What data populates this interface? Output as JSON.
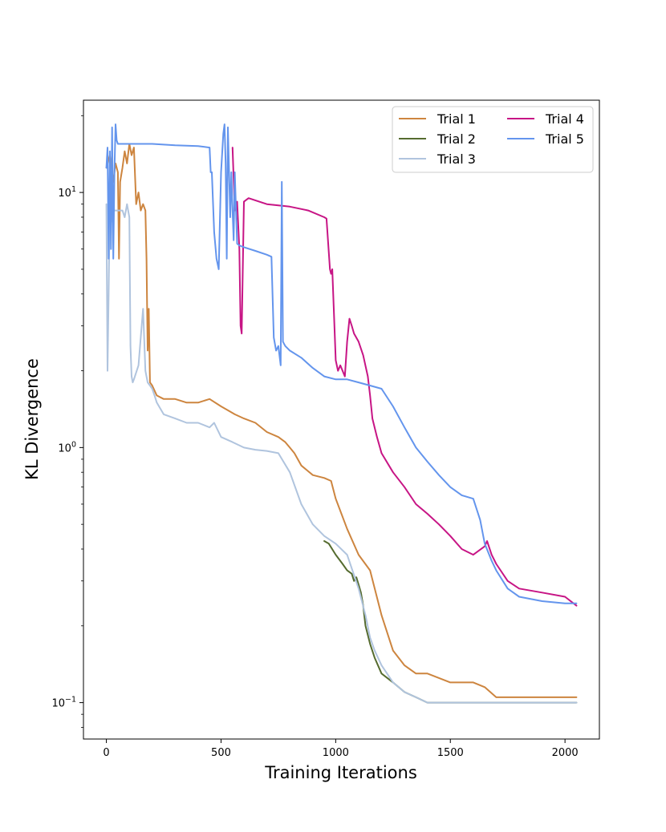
{
  "chart_data": {
    "type": "line",
    "title": "",
    "xlabel": "Training Iterations",
    "ylabel": "KL Divergence",
    "yscale": "log",
    "xlim": [
      -100,
      2150
    ],
    "ylim": [
      0.072,
      23
    ],
    "xticks": [
      0,
      500,
      1000,
      1500,
      2000
    ],
    "xtick_labels": [
      "0",
      "500",
      "1000",
      "1500",
      "2000"
    ],
    "yticks": [
      0.1,
      1,
      10
    ],
    "ytick_labels": [
      {
        "base": "10",
        "exp": "−1"
      },
      {
        "base": "10",
        "exp": "0"
      },
      {
        "base": "10",
        "exp": "1"
      }
    ],
    "grid": false,
    "legend_position": "top-right",
    "legend_columns": 2,
    "series": [
      {
        "name": "Trial 1",
        "color": "#cd853f",
        "x": [
          0,
          15,
          30,
          40,
          50,
          55,
          60,
          70,
          80,
          90,
          100,
          110,
          120,
          130,
          140,
          150,
          160,
          170,
          175,
          180,
          185,
          190,
          200,
          220,
          250,
          300,
          350,
          400,
          450,
          500,
          530,
          560,
          600,
          650,
          700,
          750,
          780,
          800,
          820,
          850,
          900,
          950,
          980,
          1000,
          1050,
          1100,
          1150,
          1200,
          1250,
          1300,
          1350,
          1400,
          1500,
          1600,
          1650,
          1700,
          1800,
          1900,
          2000,
          2050
        ],
        "y": [
          12.5,
          14,
          11,
          13,
          12,
          5.5,
          11,
          12.5,
          14.5,
          13,
          15.5,
          14,
          15,
          9,
          10,
          8.5,
          9,
          8.5,
          5.5,
          2.4,
          3.5,
          1.8,
          1.75,
          1.6,
          1.55,
          1.55,
          1.5,
          1.5,
          1.55,
          1.45,
          1.4,
          1.35,
          1.3,
          1.25,
          1.15,
          1.1,
          1.05,
          1.0,
          0.95,
          0.85,
          0.78,
          0.76,
          0.74,
          0.63,
          0.48,
          0.38,
          0.33,
          0.22,
          0.16,
          0.14,
          0.13,
          0.13,
          0.12,
          0.12,
          0.115,
          0.105,
          0.105,
          0.105,
          0.105,
          0.105
        ]
      },
      {
        "name": "Trial 2",
        "color": "#556b2f",
        "x": [
          950,
          970,
          1000,
          1030,
          1050,
          1070,
          1080,
          1090,
          1100,
          1110,
          1120,
          1130,
          1150,
          1170,
          1200,
          1250,
          1300,
          1350,
          1400,
          1500,
          1600,
          1700,
          1800,
          1900,
          2000,
          2050
        ],
        "y": [
          0.43,
          0.42,
          0.38,
          0.35,
          0.33,
          0.32,
          0.3,
          0.31,
          0.29,
          0.27,
          0.24,
          0.2,
          0.17,
          0.15,
          0.13,
          0.12,
          0.11,
          0.105,
          0.1,
          0.1,
          0.1,
          0.1,
          0.1,
          0.1,
          0.1,
          0.1
        ]
      },
      {
        "name": "Trial 3",
        "color": "#b0c4de",
        "x": [
          0,
          5,
          10,
          15,
          20,
          30,
          50,
          70,
          80,
          90,
          100,
          105,
          110,
          115,
          120,
          140,
          150,
          160,
          170,
          180,
          190,
          200,
          210,
          220,
          250,
          300,
          350,
          400,
          450,
          470,
          500,
          550,
          600,
          650,
          700,
          750,
          800,
          850,
          900,
          950,
          1000,
          1050,
          1100,
          1130,
          1150,
          1170,
          1200,
          1250,
          1300,
          1350,
          1400,
          1500,
          1600,
          1700,
          1800,
          1900,
          2000,
          2050
        ],
        "y": [
          9.0,
          2.0,
          4.0,
          9.5,
          7.5,
          8.5,
          8.5,
          8.5,
          8.0,
          9.0,
          8.0,
          2.5,
          1.9,
          1.8,
          1.85,
          2.1,
          2.7,
          3.5,
          2.0,
          1.8,
          1.75,
          1.7,
          1.6,
          1.5,
          1.35,
          1.3,
          1.25,
          1.25,
          1.2,
          1.25,
          1.1,
          1.05,
          1.0,
          0.98,
          0.97,
          0.95,
          0.8,
          0.6,
          0.5,
          0.45,
          0.42,
          0.38,
          0.28,
          0.22,
          0.18,
          0.16,
          0.14,
          0.12,
          0.11,
          0.105,
          0.1,
          0.1,
          0.1,
          0.1,
          0.1,
          0.1,
          0.1,
          0.1
        ]
      },
      {
        "name": "Trial 4",
        "color": "#c71585",
        "x": [
          550,
          560,
          570,
          580,
          585,
          590,
          600,
          620,
          700,
          800,
          880,
          950,
          960,
          975,
          980,
          985,
          1000,
          1010,
          1020,
          1040,
          1050,
          1060,
          1070,
          1080,
          1100,
          1120,
          1140,
          1150,
          1160,
          1180,
          1200,
          1250,
          1300,
          1350,
          1400,
          1450,
          1500,
          1550,
          1600,
          1650,
          1660,
          1680,
          1700,
          1750,
          1800,
          1900,
          2000,
          2050
        ],
        "y": [
          15,
          8.5,
          9.2,
          6.0,
          3.0,
          2.8,
          9.2,
          9.5,
          9.0,
          8.8,
          8.5,
          8.0,
          7.9,
          5.0,
          4.8,
          5.0,
          2.2,
          2.0,
          2.1,
          1.9,
          2.6,
          3.2,
          3.0,
          2.8,
          2.6,
          2.3,
          1.9,
          1.6,
          1.3,
          1.1,
          0.95,
          0.8,
          0.7,
          0.6,
          0.55,
          0.5,
          0.45,
          0.4,
          0.38,
          0.41,
          0.43,
          0.38,
          0.35,
          0.3,
          0.28,
          0.27,
          0.26,
          0.24
        ]
      },
      {
        "name": "Trial 5",
        "color": "#6495ed",
        "x": [
          0,
          5,
          10,
          15,
          20,
          25,
          30,
          35,
          40,
          45,
          50,
          100,
          150,
          200,
          300,
          400,
          450,
          455,
          460,
          470,
          480,
          490,
          500,
          510,
          515,
          520,
          525,
          530,
          535,
          540,
          545,
          550,
          555,
          560,
          570,
          580,
          600,
          650,
          700,
          720,
          730,
          740,
          750,
          760,
          765,
          770,
          780,
          800,
          850,
          900,
          950,
          1000,
          1050,
          1100,
          1150,
          1200,
          1250,
          1300,
          1350,
          1400,
          1450,
          1500,
          1550,
          1600,
          1630,
          1650,
          1680,
          1700,
          1750,
          1800,
          1900,
          2000,
          2050
        ],
        "y": [
          12.5,
          15,
          5.5,
          14.5,
          6.0,
          18,
          5.5,
          12,
          18.5,
          16,
          15.5,
          15.5,
          15.5,
          15.5,
          15.3,
          15.2,
          15.0,
          12,
          12,
          7.0,
          5.5,
          5.0,
          12,
          17,
          18.5,
          13,
          5.5,
          18,
          12,
          8,
          12,
          8.5,
          6.5,
          12,
          6.3,
          6.2,
          6.1,
          5.9,
          5.7,
          5.6,
          2.7,
          2.4,
          2.5,
          2.1,
          11,
          2.6,
          2.5,
          2.4,
          2.25,
          2.05,
          1.9,
          1.85,
          1.85,
          1.8,
          1.75,
          1.7,
          1.45,
          1.2,
          1.0,
          0.88,
          0.78,
          0.7,
          0.65,
          0.63,
          0.52,
          0.42,
          0.36,
          0.33,
          0.28,
          0.26,
          0.25,
          0.245,
          0.245
        ]
      }
    ]
  }
}
